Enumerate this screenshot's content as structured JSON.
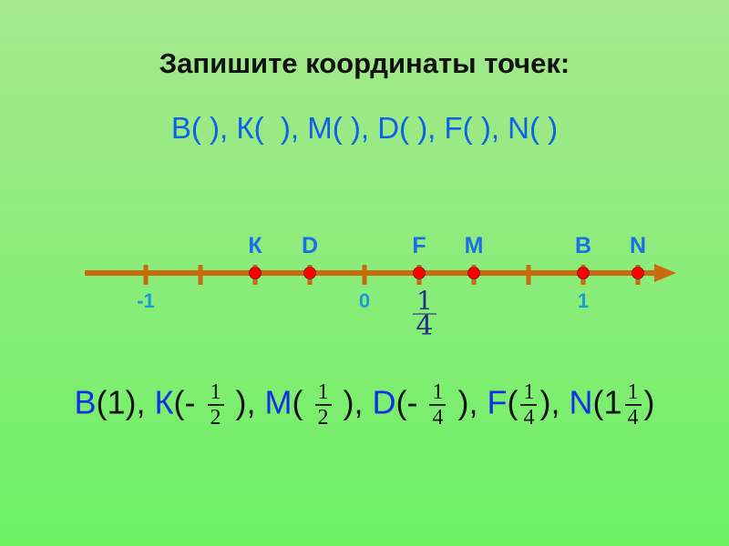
{
  "title": "Запишите координаты точек:",
  "task": "B( ), К(  ), M( ), D( ), F( ), N( )",
  "number_line": {
    "unit_ticks": [
      {
        "value": -1,
        "label": "-1"
      },
      {
        "value": 0,
        "label": "0"
      },
      {
        "value": 1,
        "label": "1"
      }
    ],
    "ticks": [
      -1,
      -0.75,
      -0.5,
      -0.25,
      0,
      0.25,
      0.5,
      0.75,
      1,
      1.25
    ],
    "points": [
      {
        "name": "К",
        "value": -0.5
      },
      {
        "name": "D",
        "value": -0.25
      },
      {
        "name": "F",
        "value": 0.25
      },
      {
        "name": "M",
        "value": 0.5
      },
      {
        "name": "B",
        "value": 1
      },
      {
        "name": "N",
        "value": 1.25
      }
    ],
    "annotation": {
      "num": "1",
      "den": "4"
    },
    "axis_color": "#c86a10",
    "point_color": "#ff0000"
  },
  "answer": [
    {
      "name": "B",
      "pre": "(1)",
      "num": "",
      "den": "",
      "post": ", "
    },
    {
      "name": "К",
      "pre": "(- ",
      "num": "1",
      "den": "2",
      "post": " ), "
    },
    {
      "name": "M",
      "pre": "( ",
      "num": "1",
      "den": "2",
      "post": " ), "
    },
    {
      "name": "D",
      "pre": "(- ",
      "num": "1",
      "den": "4",
      "post": "  ), "
    },
    {
      "name": "F",
      "pre": "(",
      "num": "1",
      "den": "4",
      "post": "), "
    },
    {
      "name": "N",
      "pre": "(1",
      "num": "1",
      "den": "4",
      "post": ")"
    }
  ]
}
